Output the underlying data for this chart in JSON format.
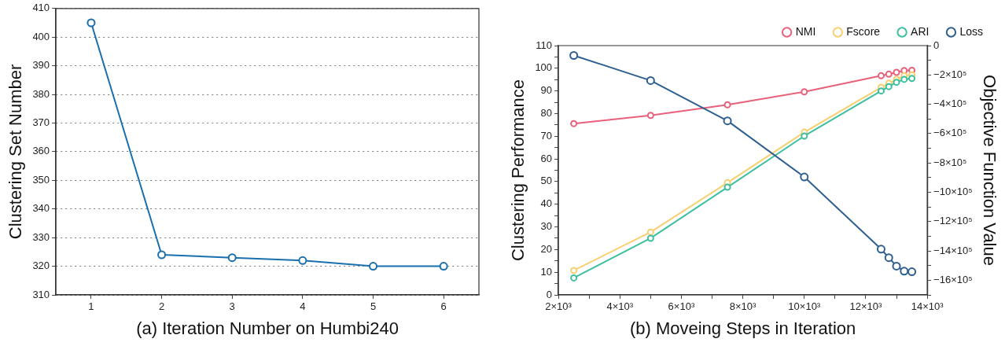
{
  "chart_data": [
    {
      "type": "line",
      "xlabel": "(a) Iteration Number on Humbi240",
      "ylabel": "Clustering Set Number",
      "x": [
        1,
        2,
        3,
        4,
        5,
        6
      ],
      "series": [
        {
          "color": "#1a6fae",
          "values": [
            405,
            324,
            323,
            322,
            320,
            320
          ]
        }
      ],
      "xlim": [
        0.5,
        6.5
      ],
      "xticks": [
        1,
        2,
        3,
        4,
        5,
        6
      ],
      "ylim": [
        310,
        410
      ],
      "yticks": [
        310,
        320,
        330,
        340,
        350,
        360,
        370,
        380,
        390,
        400,
        410
      ],
      "grid": "y",
      "marker": "circle",
      "line_style": "solid",
      "legend": false
    },
    {
      "type": "line",
      "xlabel": "(b) Moveing Steps in Iteration",
      "ylabel": "Clustering Performance",
      "y2label": "Objective Function Value",
      "x": [
        2500,
        5000,
        7500,
        10000,
        12500,
        12750,
        13000,
        13250,
        13500
      ],
      "series": [
        {
          "name": "NMI",
          "color": "#e8607a",
          "values": [
            75.6,
            79.2,
            83.9,
            89.6,
            96.7,
            97.4,
            98.2,
            99,
            99.1
          ]
        },
        {
          "name": "Fscore",
          "color": "#f7cf6e",
          "values": [
            10.8,
            27.7,
            49.5,
            71.8,
            91.6,
            93.4,
            95.1,
            96.7,
            97.1
          ]
        },
        {
          "name": "ARI",
          "color": "#3dbf9f",
          "values": [
            7.5,
            25,
            47.5,
            70.1,
            90,
            91.9,
            93.8,
            95.1,
            95.5
          ]
        },
        {
          "name": "Loss",
          "color": "#2e5f8f",
          "axis": "y2",
          "values": [
            -67000,
            -238000,
            -513000,
            -896000,
            -1388000,
            -1446000,
            -1504000,
            -1538000,
            -1542000
          ]
        }
      ],
      "xlim": [
        2000,
        14000
      ],
      "xticks": [
        {
          "value": 2000,
          "label": "2×10³"
        },
        {
          "value": 3000,
          "label": null
        },
        {
          "value": 4000,
          "label": "4×10³"
        },
        {
          "value": 5000,
          "label": null
        },
        {
          "value": 6000,
          "label": "6×10³"
        },
        {
          "value": 7000,
          "label": null
        },
        {
          "value": 8000,
          "label": "8×10³"
        },
        {
          "value": 9000,
          "label": null
        },
        {
          "value": 10000,
          "label": "10×10³"
        },
        {
          "value": 11000,
          "label": null
        },
        {
          "value": 12000,
          "label": "12×10³"
        },
        {
          "value": 13000,
          "label": null
        },
        {
          "value": 14000,
          "label": "14×10³"
        }
      ],
      "ylim": [
        0,
        110
      ],
      "yticks": [
        0,
        {
          "value": 5,
          "label": null
        },
        10,
        {
          "value": 15,
          "label": null
        },
        20,
        {
          "value": 25,
          "label": null
        },
        30,
        {
          "value": 35,
          "label": null
        },
        40,
        {
          "value": 45,
          "label": null
        },
        50,
        {
          "value": 55,
          "label": null
        },
        60,
        {
          "value": 65,
          "label": null
        },
        70,
        {
          "value": 75,
          "label": null
        },
        80,
        {
          "value": 85,
          "label": null
        },
        90,
        {
          "value": 95,
          "label": null
        },
        100,
        {
          "value": 105,
          "label": null
        },
        110
      ],
      "y2lim": [
        -1700000,
        0
      ],
      "y2ticks": [
        0,
        {
          "value": -100000,
          "label": null
        },
        {
          "value": -200000,
          "label": "−2×10⁵"
        },
        {
          "value": -300000,
          "label": null
        },
        {
          "value": -400000,
          "label": "−4×10⁵"
        },
        {
          "value": -500000,
          "label": null
        },
        {
          "value": -600000,
          "label": "−6×10⁵"
        },
        {
          "value": -700000,
          "label": null
        },
        {
          "value": -800000,
          "label": "−8×10⁵"
        },
        {
          "value": -900000,
          "label": null
        },
        {
          "value": -1000000,
          "label": "−10×10⁵"
        },
        {
          "value": -1100000,
          "label": null
        },
        {
          "value": -1200000,
          "label": "−12×10⁵"
        },
        {
          "value": -1300000,
          "label": null
        },
        {
          "value": -1400000,
          "label": "−14×10⁵"
        },
        {
          "value": -1500000,
          "label": null
        },
        {
          "value": -1600000,
          "label": "−16×10⁵"
        },
        {
          "value": -1700000,
          "label": null
        }
      ],
      "grid": false,
      "marker": "circle",
      "line_style": "solid",
      "legend": "top right"
    }
  ]
}
